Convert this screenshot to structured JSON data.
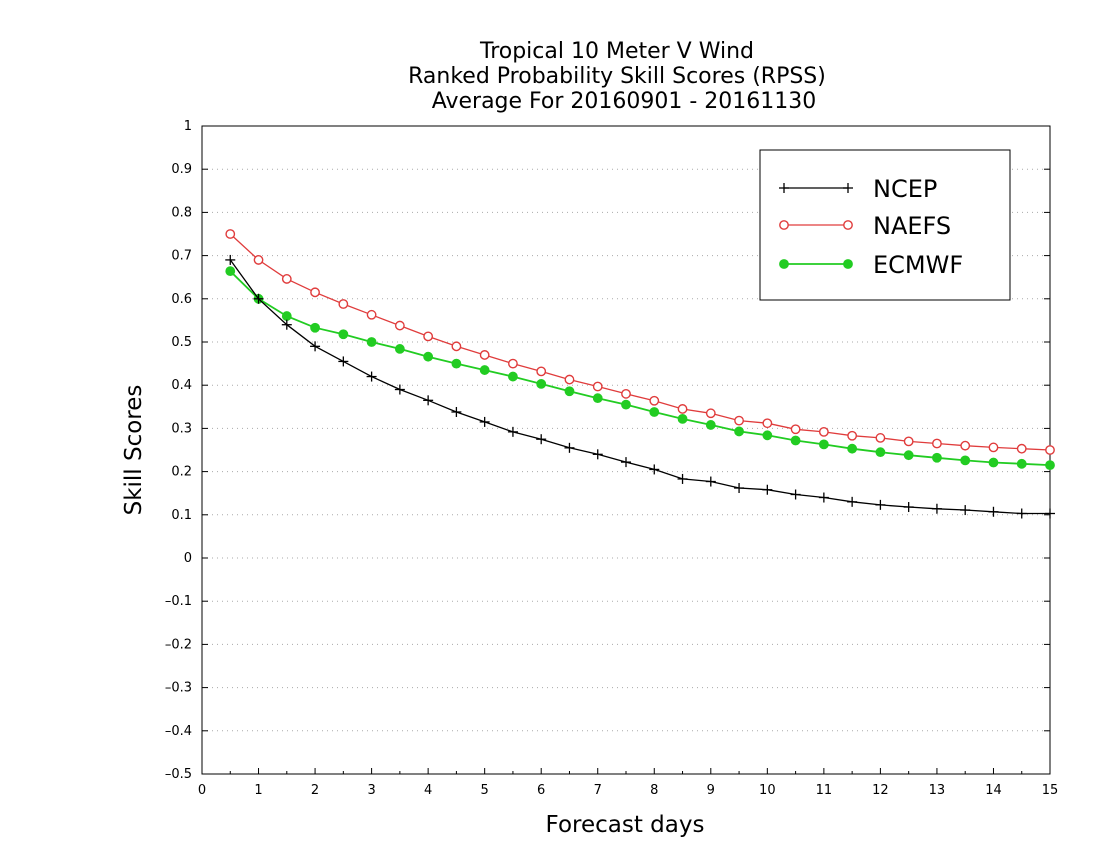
{
  "chart_data": {
    "type": "line",
    "title_lines": [
      "Tropical 10 Meter V Wind",
      "Ranked Probability Skill Scores (RPSS)",
      "Average For 20160901 - 20161130"
    ],
    "xlabel": "Forecast days",
    "ylabel": "Skill Scores",
    "xlim": [
      0,
      15
    ],
    "ylim": [
      -0.5,
      1
    ],
    "x_ticks": [
      0,
      1,
      2,
      3,
      4,
      5,
      6,
      7,
      8,
      9,
      10,
      11,
      12,
      13,
      14,
      15
    ],
    "x_tick_labels": [
      "0",
      "1",
      "2",
      "3",
      "4",
      "5",
      "6",
      "7",
      "8",
      "9",
      "10",
      "11",
      "12",
      "13",
      "14",
      "15"
    ],
    "y_ticks": [
      -0.5,
      -0.4,
      -0.3,
      -0.2,
      -0.1,
      0,
      0.1,
      0.2,
      0.3,
      0.4,
      0.5,
      0.6,
      0.7,
      0.8,
      0.9,
      1
    ],
    "y_tick_labels": [
      "–0.5",
      "–0.4",
      "–0.3",
      "–0.2",
      "–0.1",
      "0",
      "0.1",
      "0.2",
      "0.3",
      "0.4",
      "0.5",
      "0.6",
      "0.7",
      "0.8",
      "0.9",
      "1"
    ],
    "grid": "horizontal-dotted",
    "legend_position": "top-right",
    "x": [
      0.5,
      1,
      1.5,
      2,
      2.5,
      3,
      3.5,
      4,
      4.5,
      5,
      5.5,
      6,
      6.5,
      7,
      7.5,
      8,
      8.5,
      9,
      9.5,
      10,
      10.5,
      11,
      11.5,
      12,
      12.5,
      13,
      13.5,
      14,
      14.5,
      15
    ],
    "series": [
      {
        "name": "NCEP",
        "color": "#000000",
        "marker": "plus",
        "values": [
          0.69,
          0.6,
          0.54,
          0.49,
          0.455,
          0.42,
          0.39,
          0.365,
          0.338,
          0.315,
          0.292,
          0.275,
          0.255,
          0.24,
          0.222,
          0.205,
          0.183,
          0.177,
          0.162,
          0.158,
          0.147,
          0.14,
          0.13,
          0.123,
          0.118,
          0.114,
          0.111,
          0.107,
          0.103,
          0.103
        ]
      },
      {
        "name": "NAEFS",
        "color": "#e03c3c",
        "marker": "open-circle",
        "values": [
          0.75,
          0.69,
          0.646,
          0.615,
          0.588,
          0.563,
          0.538,
          0.513,
          0.49,
          0.47,
          0.45,
          0.432,
          0.413,
          0.397,
          0.38,
          0.364,
          0.345,
          0.335,
          0.318,
          0.312,
          0.298,
          0.292,
          0.283,
          0.278,
          0.27,
          0.265,
          0.26,
          0.256,
          0.253,
          0.25
        ]
      },
      {
        "name": "ECMWF",
        "color": "#22cc22",
        "marker": "filled-circle",
        "values": [
          0.664,
          0.6,
          0.56,
          0.533,
          0.518,
          0.5,
          0.484,
          0.466,
          0.45,
          0.435,
          0.42,
          0.403,
          0.386,
          0.37,
          0.355,
          0.338,
          0.322,
          0.308,
          0.293,
          0.284,
          0.272,
          0.263,
          0.253,
          0.245,
          0.238,
          0.232,
          0.226,
          0.221,
          0.218,
          0.215
        ]
      }
    ]
  }
}
